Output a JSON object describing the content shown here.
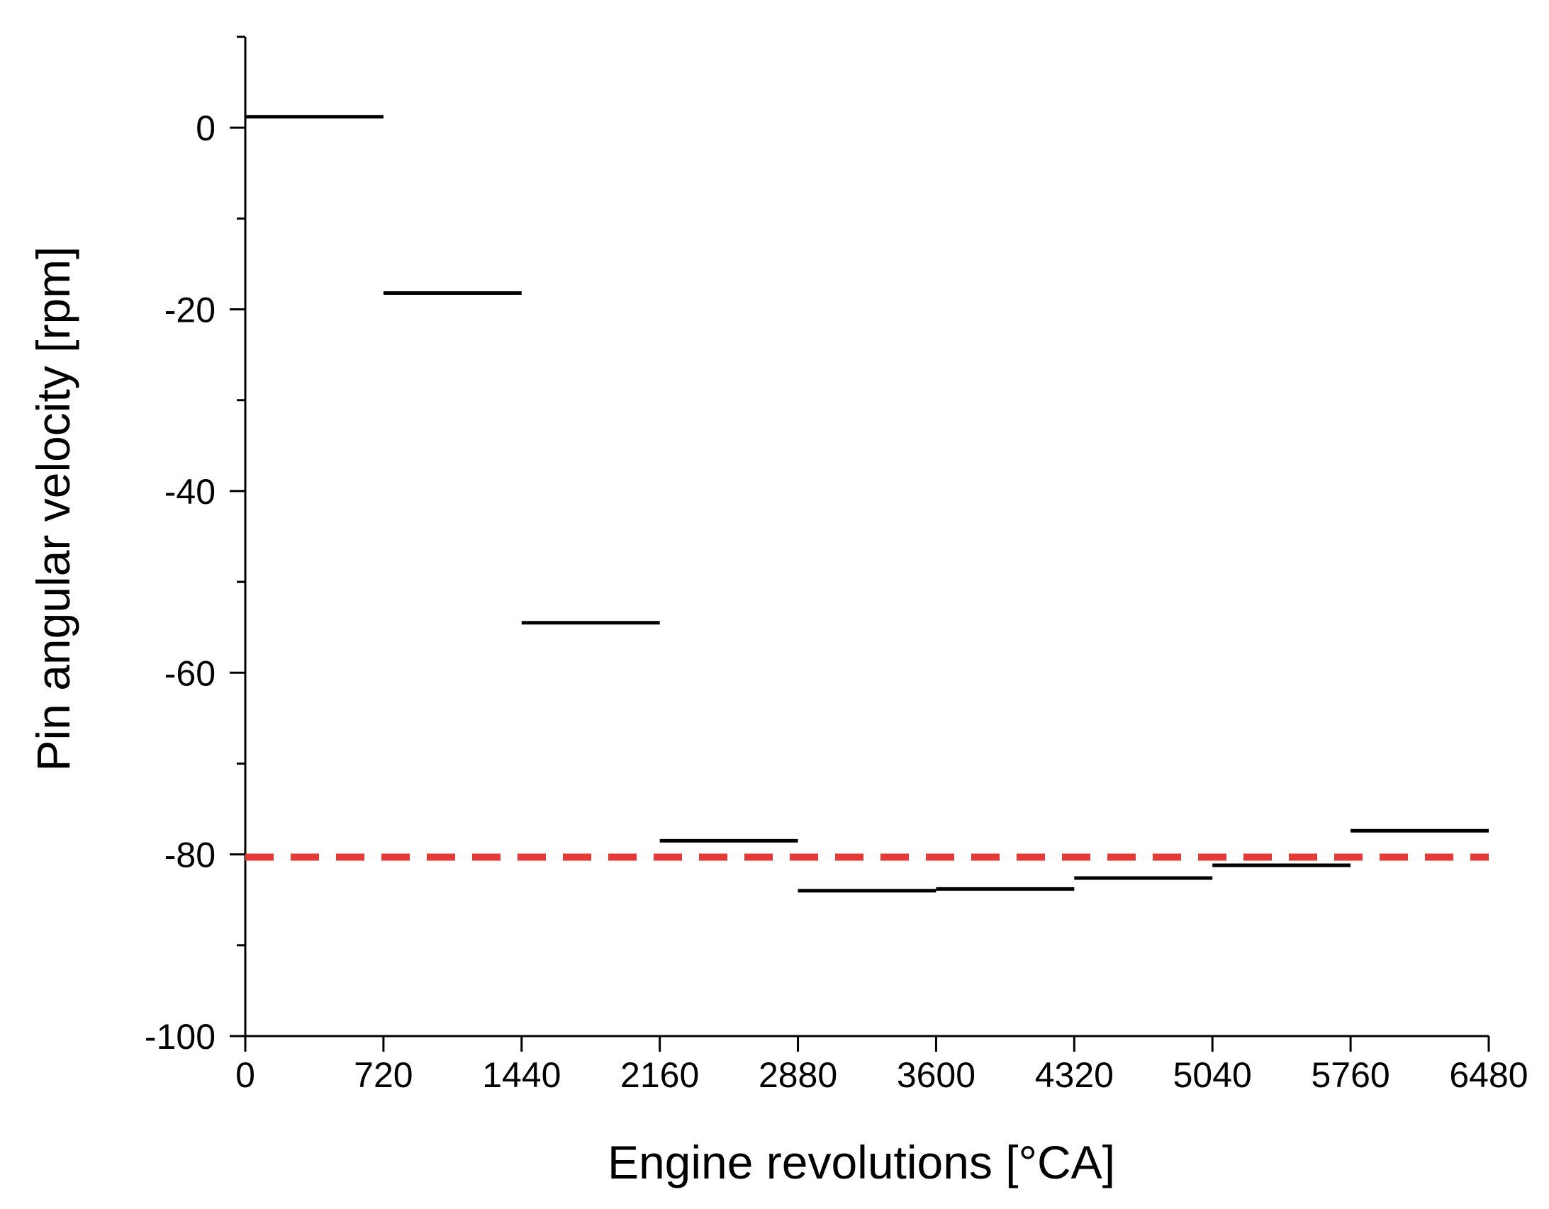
{
  "chart_data": {
    "type": "line",
    "xlabel": "Engine revolutions [°CA]",
    "ylabel": "Pin angular velocity [rpm]",
    "xlim": [
      0,
      6480
    ],
    "ylim": [
      -100,
      10
    ],
    "x_ticks": [
      0,
      720,
      1440,
      2160,
      2880,
      3600,
      4320,
      5040,
      5760,
      6480
    ],
    "x_tick_labels": [
      "0",
      "720",
      "1440",
      "2160",
      "2880",
      "3600",
      "4320",
      "5040",
      "5760",
      "6480"
    ],
    "y_ticks": [
      0,
      -20,
      -40,
      -60,
      -80,
      -100
    ],
    "y_tick_labels": [
      "0",
      "-20",
      "-40",
      "-60",
      "-80",
      "-100"
    ],
    "y_minor_ticks": [
      10,
      -10,
      -30,
      -50,
      -70,
      -90
    ],
    "grid": false,
    "series": [
      {
        "style": "step-segments",
        "color": "#000000",
        "segments": [
          {
            "x0": 0,
            "x1": 720,
            "y": 1.2
          },
          {
            "x0": 720,
            "x1": 1440,
            "y": -18.2
          },
          {
            "x0": 1440,
            "x1": 2160,
            "y": -54.5
          },
          {
            "x0": 2160,
            "x1": 2880,
            "y": -78.5
          },
          {
            "x0": 2880,
            "x1": 3600,
            "y": -84.0
          },
          {
            "x0": 3600,
            "x1": 4320,
            "y": -83.8
          },
          {
            "x0": 4320,
            "x1": 5040,
            "y": -82.6
          },
          {
            "x0": 5040,
            "x1": 5760,
            "y": -81.2
          },
          {
            "x0": 5760,
            "x1": 6480,
            "y": -77.4
          }
        ]
      },
      {
        "style": "dashed-reference",
        "color": "#e53935",
        "x0": 0,
        "x1": 6480,
        "y": -80.3
      }
    ]
  }
}
